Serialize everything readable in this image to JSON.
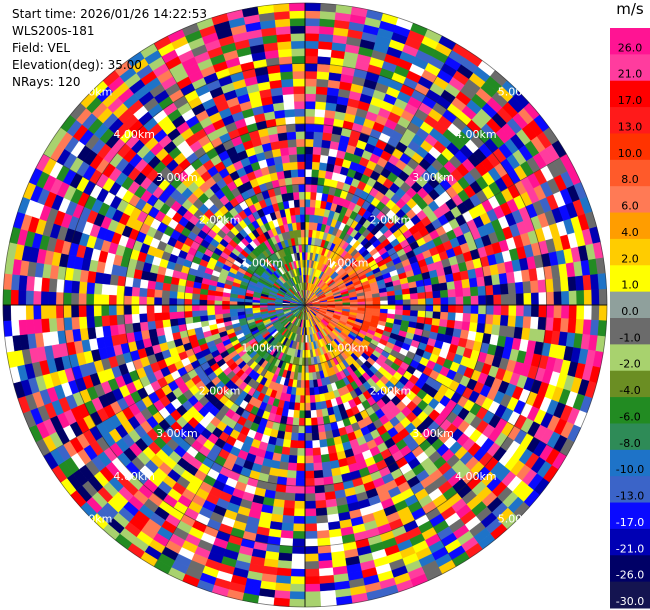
{
  "info": {
    "start_time": "Start time: 2026/01/26 14:22:53",
    "station": "WLS200s-181",
    "field": "Field: VEL",
    "elevation": "Elevation(deg): 35.00",
    "nrays": "NRays: 120"
  },
  "chart_data": {
    "type": "heatmap",
    "projection": "polar-ppi",
    "field": "VEL",
    "n_rays": 120,
    "max_range_km": 5.0,
    "range_ring_labels": [
      "1.00km",
      "2.00km",
      "3.00km",
      "4.00km",
      "5.00km"
    ],
    "colorbar": {
      "unit": "m/s",
      "levels": [
        "26.0",
        "21.0",
        "17.0",
        "13.0",
        "10.0",
        "8.0",
        "6.0",
        "4.0",
        "2.0",
        "1.0",
        "0.0",
        "-1.0",
        "-2.0",
        "-4.0",
        "-6.0",
        "-8.0",
        "-10.0",
        "-13.0",
        "-17.0",
        "-21.0",
        "-26.0",
        "-30.0"
      ],
      "colors": [
        "#ff1493",
        "#ff3c9e",
        "#ff0000",
        "#ff1a1a",
        "#ff3300",
        "#ff5a2a",
        "#ff7a55",
        "#ff9d00",
        "#ffcc00",
        "#ffff00",
        "#8fa09c",
        "#6b6b6b",
        "#a8d26e",
        "#6b8e23",
        "#228b22",
        "#2e8b57",
        "#1e73c8",
        "#3b64c8",
        "#0a0aff",
        "#0000b4",
        "#000066",
        "#141450"
      ]
    }
  }
}
